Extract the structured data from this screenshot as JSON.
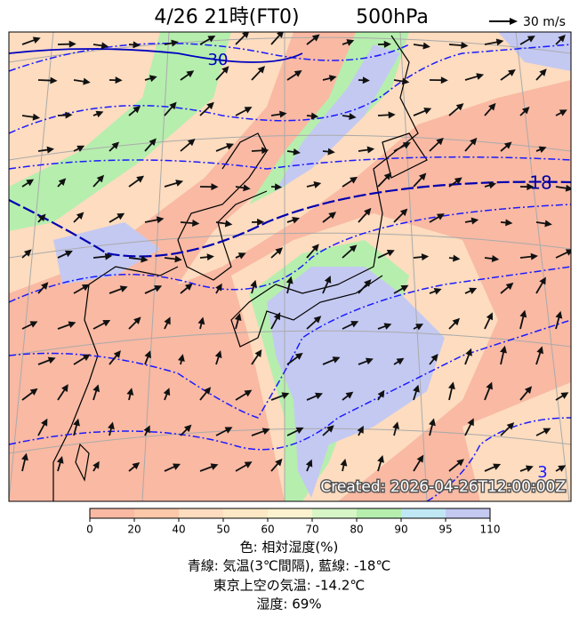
{
  "header": {
    "title": "4/26 21時(FT0)",
    "level": "500hPa",
    "wind_scale": "30 m/s"
  },
  "map": {
    "contour_labels": [
      "30",
      "18",
      "3"
    ],
    "created": "Created: 2026-04-26T12:00:00Z"
  },
  "colorbar": {
    "ticks": [
      "0",
      "20",
      "40",
      "50",
      "60",
      "70",
      "80",
      "90",
      "95",
      "110"
    ],
    "colors": [
      "#f9b9a3",
      "#fbc8aa",
      "#fddcbf",
      "#fde8c6",
      "#fdf2cf",
      "#d7f5c6",
      "#b6eeae",
      "#bfe8f4",
      "#c4c9f2"
    ]
  },
  "caption": [
    "色: 相対湿度(%)",
    "青線: 気温(3℃間隔), 藍線: -18℃",
    "東京上空の気温: -14.2℃",
    "湿度: 69%"
  ]
}
